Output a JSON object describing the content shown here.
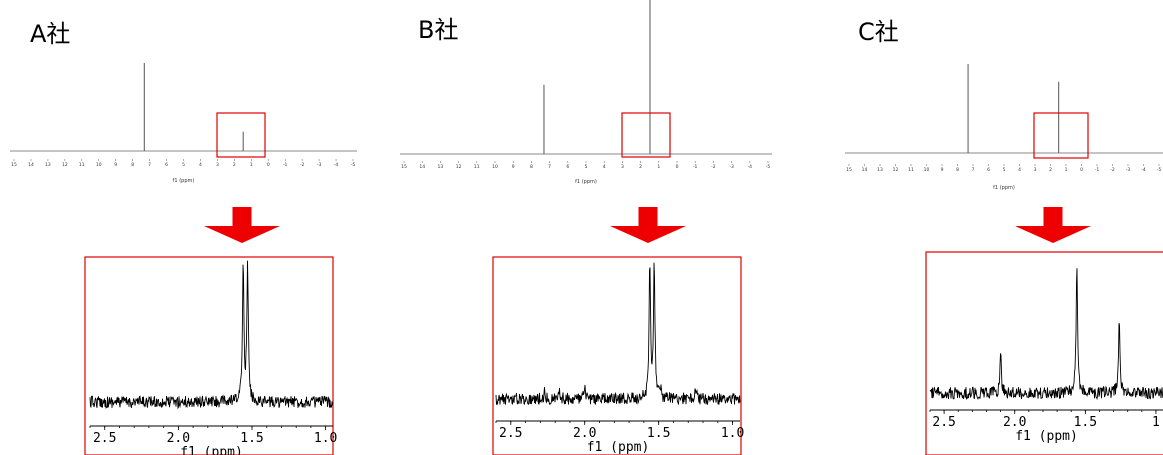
{
  "colors": {
    "highlight": "#e00000",
    "arrow": "#ee0000",
    "trace": "#000000",
    "axis": "#888888"
  },
  "panels": [
    {
      "label": "A社"
    },
    {
      "label": "B社"
    },
    {
      "label": "C社"
    }
  ],
  "chart_data": [
    {
      "type": "line",
      "title": "A社",
      "view": "full-spectrum",
      "xlabel": "f1 (ppm)",
      "xlim": [
        15,
        -5
      ],
      "x_reversed": true,
      "tick_labels": [
        "15",
        "14",
        "13",
        "12",
        "11",
        "10",
        "9",
        "8",
        "7",
        "6",
        "5",
        "4",
        "3",
        "2",
        "1",
        "0",
        "-1",
        "-2",
        "-3",
        "-4",
        "-5"
      ],
      "peaks": [
        {
          "x": 7.26,
          "height": 1.0
        },
        {
          "x": 1.56,
          "height": 0.22
        }
      ],
      "highlight_range": [
        2.6,
        0.9
      ]
    },
    {
      "type": "line",
      "title": "A社",
      "view": "zoomed",
      "xlabel": "f1 (ppm)",
      "xlim": [
        2.6,
        0.95
      ],
      "x_reversed": true,
      "xticks": [
        2.5,
        2.0,
        1.5,
        1.0
      ],
      "tick_labels": [
        "2.5",
        "2.0",
        "1.5",
        "1.0"
      ],
      "peaks": [
        {
          "x": 1.56,
          "height": 1.0
        },
        {
          "x": 1.53,
          "height": 1.0
        }
      ]
    },
    {
      "type": "line",
      "title": "B社",
      "view": "full-spectrum",
      "xlabel": "f1 (ppm)",
      "xlim": [
        15,
        -5
      ],
      "x_reversed": true,
      "tick_labels": [
        "15",
        "14",
        "13",
        "12",
        "11",
        "10",
        "9",
        "8",
        "7",
        "6",
        "5",
        "4",
        "3",
        "2",
        "1",
        "0",
        "-1",
        "-2",
        "-3",
        "-4",
        "-5"
      ],
      "peaks": [
        {
          "x": 7.26,
          "height": 0.45
        },
        {
          "x": 1.56,
          "height": 1.0
        }
      ],
      "highlight_range": [
        2.6,
        0.9
      ]
    },
    {
      "type": "line",
      "title": "B社",
      "view": "zoomed",
      "xlabel": "f1 (ppm)",
      "xlim": [
        2.6,
        0.95
      ],
      "x_reversed": true,
      "xticks": [
        2.5,
        2.0,
        1.5,
        1.0
      ],
      "tick_labels": [
        "2.5",
        "2.0",
        "1.5",
        "1.0"
      ],
      "peaks": [
        {
          "x": 2.27,
          "height": 0.06
        },
        {
          "x": 2.17,
          "height": 0.07
        },
        {
          "x": 2.0,
          "height": 0.07
        },
        {
          "x": 1.56,
          "height": 1.0
        },
        {
          "x": 1.53,
          "height": 1.0
        },
        {
          "x": 1.49,
          "height": 0.09
        },
        {
          "x": 1.25,
          "height": 0.08
        }
      ]
    },
    {
      "type": "line",
      "title": "C社",
      "view": "full-spectrum",
      "xlabel": "f1 (ppm)",
      "xlim": [
        15,
        -5
      ],
      "x_reversed": true,
      "tick_labels": [
        "15",
        "14",
        "13",
        "12",
        "11",
        "10",
        "9",
        "8",
        "7",
        "6",
        "5",
        "4",
        "3",
        "2",
        "1",
        "0",
        "-1",
        "-2",
        "-3",
        "-4",
        "-5"
      ],
      "peaks": [
        {
          "x": 7.26,
          "height": 1.0
        },
        {
          "x": 1.56,
          "height": 0.8
        }
      ],
      "highlight_range": [
        2.6,
        0.9
      ]
    },
    {
      "type": "line",
      "title": "C社",
      "view": "zoomed",
      "xlabel": "f1 (ppm)",
      "xlim": [
        2.6,
        0.95
      ],
      "x_reversed": true,
      "xticks": [
        2.5,
        2.0,
        1.5,
        1.0
      ],
      "tick_labels": [
        "2.5",
        "2.0",
        "1.5",
        "1"
      ],
      "peaks": [
        {
          "x": 2.1,
          "height": 0.3
        },
        {
          "x": 1.56,
          "height": 1.0
        },
        {
          "x": 1.26,
          "height": 0.55
        }
      ]
    }
  ]
}
